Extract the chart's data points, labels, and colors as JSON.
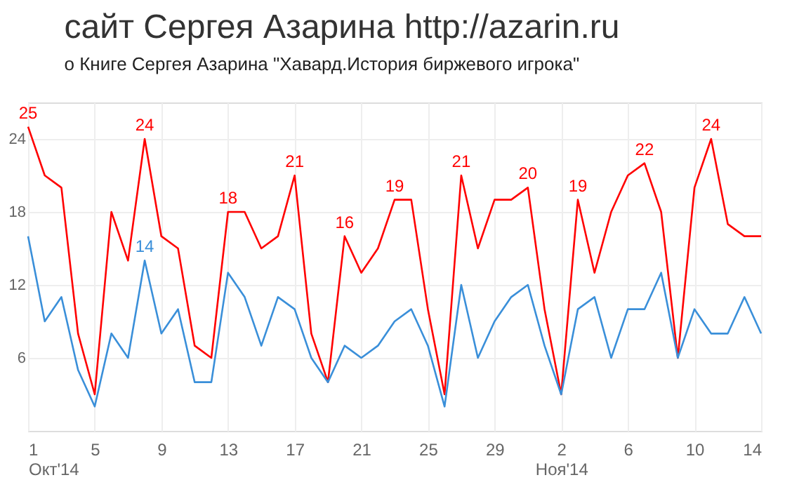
{
  "chart_data": {
    "type": "line",
    "title": "сайт Сергея Азарина http://azarin.ru",
    "subtitle": "о Книге Сергея Азарина \"Хавард.История биржевого игрока\"",
    "x": [
      "2014-10-01",
      "2014-10-02",
      "2014-10-03",
      "2014-10-04",
      "2014-10-05",
      "2014-10-06",
      "2014-10-07",
      "2014-10-08",
      "2014-10-09",
      "2014-10-10",
      "2014-10-11",
      "2014-10-12",
      "2014-10-13",
      "2014-10-14",
      "2014-10-15",
      "2014-10-16",
      "2014-10-17",
      "2014-10-18",
      "2014-10-19",
      "2014-10-20",
      "2014-10-21",
      "2014-10-22",
      "2014-10-23",
      "2014-10-24",
      "2014-10-25",
      "2014-10-26",
      "2014-10-27",
      "2014-10-28",
      "2014-10-29",
      "2014-10-30",
      "2014-10-31",
      "2014-11-01",
      "2014-11-02",
      "2014-11-03",
      "2014-11-04",
      "2014-11-05",
      "2014-11-06",
      "2014-11-07",
      "2014-11-08",
      "2014-11-09",
      "2014-11-10",
      "2014-11-11",
      "2014-11-12",
      "2014-11-13",
      "2014-11-14"
    ],
    "series": [
      {
        "color": "#ff0000",
        "values": [
          25,
          21,
          20,
          8,
          3,
          18,
          14,
          24,
          16,
          15,
          7,
          6,
          18,
          18,
          15,
          16,
          21,
          8,
          4,
          16,
          13,
          15,
          19,
          19,
          10,
          3,
          21,
          15,
          19,
          19,
          20,
          10,
          3,
          19,
          13,
          18,
          21,
          22,
          18,
          6,
          20,
          24,
          17,
          16,
          16
        ],
        "value_labels": [
          "25",
          null,
          null,
          null,
          null,
          null,
          null,
          "24",
          null,
          null,
          null,
          null,
          "18",
          null,
          null,
          null,
          "21",
          null,
          null,
          "16",
          null,
          null,
          "19",
          null,
          null,
          null,
          "21",
          null,
          null,
          null,
          "20",
          null,
          null,
          "19",
          null,
          null,
          null,
          "22",
          null,
          null,
          null,
          "24",
          null,
          null,
          null
        ]
      },
      {
        "color": "#3a8fd9",
        "values": [
          16,
          9,
          11,
          5,
          2,
          8,
          6,
          14,
          8,
          10,
          4,
          4,
          13,
          11,
          7,
          11,
          10,
          6,
          4,
          7,
          6,
          7,
          9,
          10,
          7,
          2,
          12,
          6,
          9,
          11,
          12,
          7,
          3,
          10,
          11,
          6,
          10,
          10,
          13,
          6,
          10,
          8,
          8,
          11,
          8
        ],
        "value_labels": [
          null,
          null,
          null,
          null,
          null,
          null,
          null,
          "14",
          null,
          null,
          null,
          null,
          null,
          null,
          null,
          null,
          null,
          null,
          null,
          null,
          null,
          null,
          null,
          null,
          null,
          null,
          null,
          null,
          null,
          null,
          null,
          null,
          null,
          null,
          null,
          null,
          null,
          null,
          null,
          null,
          null,
          null,
          null,
          null,
          null
        ]
      }
    ],
    "xlim": [
      "2014-10-01",
      "2014-11-14"
    ],
    "xticks": [
      {
        "value": "2014-10-01",
        "label": "1\nОкт'14"
      },
      {
        "value": "2014-10-05",
        "label": "5"
      },
      {
        "value": "2014-10-09",
        "label": "9"
      },
      {
        "value": "2014-10-13",
        "label": "13"
      },
      {
        "value": "2014-10-17",
        "label": "17"
      },
      {
        "value": "2014-10-21",
        "label": "21"
      },
      {
        "value": "2014-10-25",
        "label": "25"
      },
      {
        "value": "2014-10-29",
        "label": "29"
      },
      {
        "value": "2014-11-02",
        "label": "2\nНоя'14"
      },
      {
        "value": "2014-11-06",
        "label": "6"
      },
      {
        "value": "2014-11-10",
        "label": "10"
      },
      {
        "value": "2014-11-14",
        "label": "14"
      }
    ],
    "ylim": [
      0,
      27
    ],
    "yticks": [
      6,
      12,
      18,
      24
    ],
    "grid": true,
    "marker": "none",
    "line_style": "solid"
  }
}
